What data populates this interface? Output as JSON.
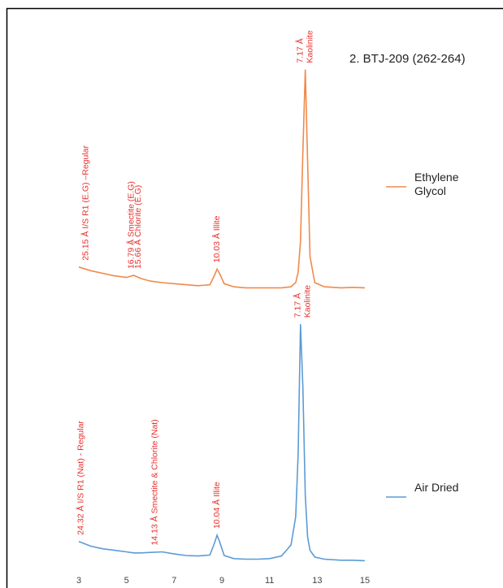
{
  "chart_data": {
    "type": "line",
    "title": "2. BTJ-209 (262-264)",
    "x": [
      3,
      3.5,
      4,
      4.5,
      5,
      5.3,
      5.6,
      6,
      6.5,
      7,
      7.5,
      8,
      8.5,
      8.7,
      8.8,
      8.9,
      9.1,
      9.5,
      10,
      10.5,
      11,
      11.5,
      11.9,
      12.1,
      12.2,
      12.3,
      12.4,
      12.5,
      12.6,
      12.7,
      12.9,
      13.3,
      14,
      14.5,
      15
    ],
    "xlim": [
      3,
      15
    ],
    "xticks": [
      3,
      5,
      7,
      9,
      11,
      13,
      15
    ],
    "ylim": [
      0,
      100
    ],
    "series": [
      {
        "name": "Ethylene Glycol",
        "color": "#f08a4b",
        "values": [
          58,
          57.3,
          56.8,
          56.3,
          56,
          56.4,
          55.8,
          55.3,
          55,
          54.8,
          54.6,
          54.4,
          54.6,
          56.5,
          57.6,
          56.8,
          54.8,
          54.2,
          54,
          54,
          54,
          54,
          54.2,
          55,
          57,
          63,
          80,
          96,
          78,
          60,
          55,
          54.2,
          54,
          54.1,
          54
        ],
        "annotations": [
          {
            "text": "25.15 Å I/S R1 (E.G) –Regular",
            "x": 3.3
          },
          {
            "text": "16.79 Å Smectite (E.G)",
            "x": 5.2
          },
          {
            "text": "15.66 Å Chlorite (E.G)",
            "x": 5.5
          },
          {
            "text": "10.03 Å Illite",
            "x": 8.8
          },
          {
            "text": "7.17 Å",
            "x": 12.3
          },
          {
            "text": "Kaolinite",
            "x": 12.7
          }
        ]
      },
      {
        "name": "Air Dried",
        "color": "#5b9bd5",
        "values": [
          5.2,
          4.3,
          3.8,
          3.5,
          3.2,
          3,
          3,
          3.1,
          3.2,
          2.8,
          2.5,
          2.4,
          2.6,
          5,
          6.4,
          5.2,
          2.5,
          1.9,
          1.8,
          1.8,
          1.9,
          2.4,
          4.5,
          10,
          22,
          47,
          35,
          14,
          6,
          3.5,
          2.2,
          1.8,
          1.6,
          1.6,
          1.5
        ],
        "annotations": [
          {
            "text": "24.32 Å I/S R1 (Nat) - Regular",
            "x": 3.1
          },
          {
            "text": "14.13 Å Smectite & Chlorite (Nat)",
            "x": 6.2
          },
          {
            "text": "10.04 Å Illite",
            "x": 8.8
          },
          {
            "text": "7.17 Å",
            "x": 12.2
          },
          {
            "text": "Kaolinite",
            "x": 12.6
          }
        ]
      }
    ]
  }
}
